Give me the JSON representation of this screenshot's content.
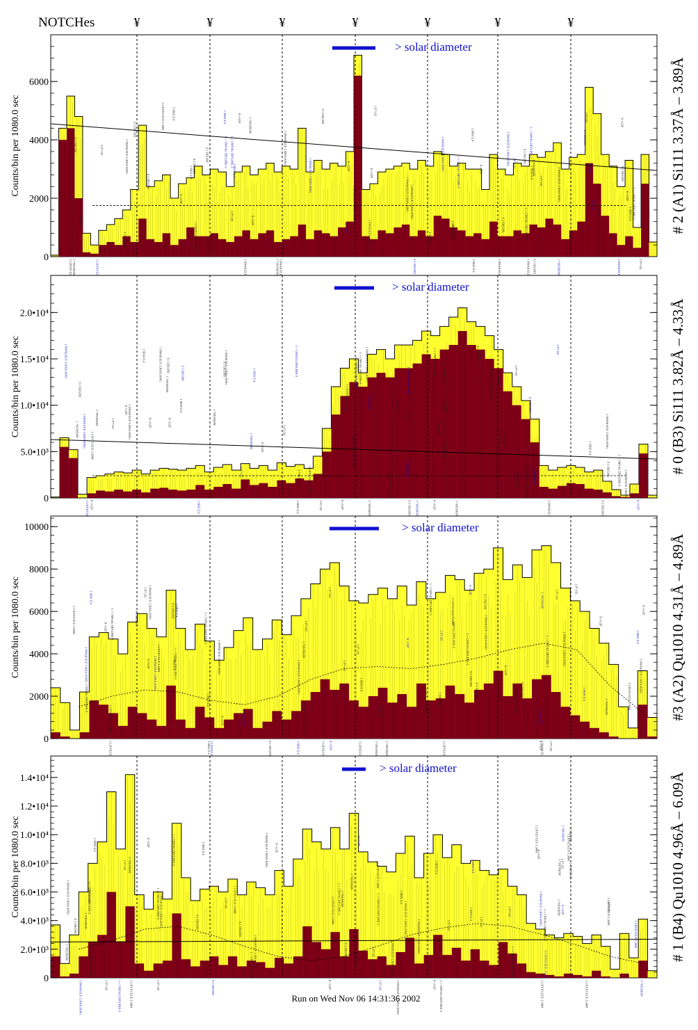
{
  "header": {
    "notches_label": "NOTCHes",
    "notch_symbol": "¥"
  },
  "footer": {
    "run_text": "Run on Wed Nov 06 14:31:36 2002"
  },
  "legend": {
    "text": "> solar diameter",
    "color": "#1010d0"
  },
  "colors": {
    "fill_total": "#ffff30",
    "fill_sub": "#800018",
    "line": "#000000",
    "annot_blue": "#1010c0",
    "annot_black": "#202020"
  },
  "chart_data": [
    {
      "type": "area",
      "title": "# 2 (A1) Si111  3.37Å – 3.89Å",
      "ylabel": "Counts/bin per   1080.0 sec",
      "ylim": [
        0,
        7600
      ],
      "yticks": [
        0,
        2000,
        4000,
        6000
      ],
      "ytick_labels": [
        "0",
        "2000",
        "4000",
        "6000"
      ],
      "trend_start": 4550,
      "trend_end": 2950,
      "dashed_avg_level": 1750,
      "series": [
        {
          "name": "total",
          "values": [
            50,
            4400,
            5500,
            4800,
            800,
            400,
            900,
            1100,
            1300,
            1600,
            2300,
            4500,
            2400,
            2600,
            2800,
            2000,
            2500,
            2700,
            3100,
            2800,
            3000,
            2900,
            2400,
            2900,
            3100,
            2800,
            3000,
            3200,
            2900,
            3100,
            3000,
            4400,
            2900,
            3300,
            3000,
            3200,
            3100,
            3600,
            6900,
            2300,
            2500,
            2900,
            3000,
            3100,
            3200,
            3000,
            3300,
            3100,
            3600,
            3500,
            3100,
            3200,
            3000,
            3000,
            2300,
            3500,
            3000,
            2800,
            3200,
            3100,
            3500,
            3400,
            3600,
            3900,
            3000,
            3400,
            3500,
            5800,
            4900,
            3500,
            3100,
            2400,
            3300,
            1000,
            3500,
            500
          ]
        },
        {
          "name": "subtracted",
          "values": [
            0,
            4000,
            4400,
            2000,
            150,
            100,
            400,
            500,
            400,
            700,
            500,
            1300,
            600,
            500,
            800,
            400,
            600,
            1000,
            700,
            700,
            800,
            600,
            500,
            700,
            900,
            600,
            800,
            900,
            500,
            600,
            700,
            1100,
            600,
            900,
            800,
            700,
            1000,
            1200,
            6200,
            700,
            600,
            900,
            800,
            1000,
            1100,
            700,
            900,
            700,
            1400,
            1300,
            1000,
            900,
            700,
            800,
            600,
            1200,
            700,
            700,
            900,
            800,
            1100,
            1000,
            1300,
            1100,
            600,
            900,
            1200,
            3200,
            2500,
            1400,
            800,
            400,
            700,
            300,
            2500,
            0
          ]
        }
      ]
    },
    {
      "type": "area",
      "title": "# 0 (B3) Si111  3.82Å – 4.33Å",
      "ylabel": "Counts/bin per   1080.0 sec",
      "ylim": [
        0,
        24000
      ],
      "yticks": [
        0,
        5000,
        10000,
        15000,
        20000
      ],
      "ytick_labels": [
        "0",
        "5.0•10³",
        "1.0•10⁴",
        "1.5•10⁴",
        "2.0•10⁴"
      ],
      "trend_start": 6300,
      "trend_end": 4200,
      "dashed_avg_level": 2400,
      "series": [
        {
          "name": "total",
          "values": [
            100,
            6500,
            5200,
            400,
            2200,
            2400,
            2600,
            2800,
            2700,
            3000,
            2600,
            3000,
            3200,
            3100,
            3000,
            3200,
            3500,
            2800,
            3300,
            3600,
            3000,
            3700,
            3200,
            3500,
            3000,
            3800,
            3400,
            3600,
            3200,
            4500,
            7500,
            12000,
            14000,
            15000,
            13500,
            15500,
            16000,
            15000,
            16500,
            16500,
            17000,
            18000,
            17500,
            18500,
            19500,
            20500,
            19000,
            18500,
            17500,
            16000,
            13500,
            12000,
            10500,
            8500,
            3500,
            3000,
            3300,
            3500,
            3300,
            2800,
            3000,
            1800,
            900,
            300,
            1500,
            5800,
            300
          ]
        },
        {
          "name": "subtracted",
          "values": [
            0,
            5500,
            4300,
            0,
            500,
            800,
            700,
            900,
            700,
            900,
            600,
            1000,
            1100,
            900,
            800,
            900,
            1400,
            900,
            1200,
            1500,
            1000,
            2000,
            1400,
            1600,
            1200,
            1900,
            1600,
            2100,
            1900,
            2600,
            5000,
            9000,
            11000,
            12500,
            12000,
            13000,
            13500,
            13000,
            14000,
            14000,
            14500,
            15500,
            15000,
            16000,
            16500,
            18000,
            16500,
            16000,
            15000,
            14000,
            11500,
            10000,
            8500,
            6000,
            1200,
            1000,
            1300,
            1600,
            1500,
            1000,
            900,
            600,
            200,
            100,
            500,
            4800,
            0
          ]
        }
      ]
    },
    {
      "type": "area",
      "title": "#3 (A2) Qu1010  4.31Å – 4.89Å",
      "ylabel": "Counts/bin per   1080.0 sec",
      "ylim": [
        0,
        10500
      ],
      "yticks": [
        0,
        2000,
        4000,
        6000,
        8000,
        10000
      ],
      "ytick_labels": [
        "0",
        "2000",
        "4000",
        "6000",
        "8000",
        "10000"
      ],
      "dashed_curve": [
        1500,
        2000,
        2300,
        2200,
        1800,
        1600,
        2000,
        2800,
        3300,
        3400,
        3300,
        3500,
        3800,
        4200,
        4500,
        4200,
        2500,
        1200
      ],
      "series": [
        {
          "name": "total",
          "values": [
            2400,
            1700,
            400,
            2200,
            4800,
            5000,
            4700,
            4000,
            5500,
            5900,
            5200,
            4800,
            7000,
            5200,
            4200,
            5400,
            4600,
            3700,
            4300,
            5100,
            5700,
            4200,
            4700,
            5600,
            4900,
            5800,
            6600,
            7300,
            8000,
            8300,
            7200,
            6500,
            6400,
            6800,
            7100,
            6600,
            7200,
            6300,
            7400,
            6600,
            6900,
            7700,
            7500,
            7000,
            7800,
            8000,
            9000,
            7500,
            8200,
            7600,
            8900,
            9100,
            8300,
            7100,
            6500,
            6000,
            5200,
            4500,
            3500,
            1500,
            500,
            3200,
            1000
          ]
        },
        {
          "name": "subtracted",
          "values": [
            300,
            100,
            0,
            300,
            1800,
            1600,
            1200,
            600,
            1500,
            1200,
            900,
            600,
            2500,
            900,
            500,
            1500,
            1000,
            500,
            900,
            1200,
            1400,
            500,
            800,
            1300,
            900,
            1300,
            1800,
            2200,
            2800,
            2300,
            2600,
            1800,
            1500,
            2000,
            2400,
            1700,
            2100,
            1500,
            2600,
            1800,
            1900,
            2500,
            2100,
            1700,
            2300,
            2600,
            3200,
            2000,
            2600,
            1900,
            2800,
            3000,
            2200,
            1500,
            1100,
            800,
            500,
            300,
            100,
            0,
            0,
            1600,
            100
          ]
        }
      ]
    },
    {
      "type": "area",
      "title": "# 1 (B4) Qu1010 4.96Å – 6.09Å",
      "ylabel": "Counts/bin per   1080.0 sec",
      "ylim": [
        0,
        15500
      ],
      "yticks": [
        0,
        2000,
        4000,
        6000,
        8000,
        10000,
        12000,
        14000
      ],
      "ytick_labels": [
        "0",
        "2.0•10³",
        "4.0•10³",
        "6.0•10³",
        "8.0•10³",
        "1.0•10⁴",
        "1.2•10⁴",
        "1.4•10⁴"
      ],
      "trend_start": 2500,
      "trend_end": 2700,
      "dashed_curve": [
        2000,
        2600,
        3400,
        3600,
        3000,
        2200,
        1500,
        1200,
        1500,
        2200,
        3000,
        3500,
        3800,
        3600,
        3000,
        2300,
        1500,
        1000
      ],
      "series": [
        {
          "name": "total",
          "values": [
            3700,
            1000,
            3000,
            6000,
            8000,
            9500,
            13000,
            9000,
            14200,
            5800,
            4800,
            6000,
            5500,
            10800,
            7000,
            5400,
            6200,
            6400,
            6000,
            6900,
            5800,
            6700,
            6300,
            5800,
            7500,
            6400,
            8300,
            10400,
            9500,
            9000,
            10500,
            9000,
            11500,
            8800,
            8100,
            7800,
            7400,
            8700,
            9900,
            7000,
            8700,
            10000,
            8400,
            9300,
            8000,
            8200,
            7500,
            7200,
            7600,
            6400,
            5800,
            3800,
            3400,
            3000,
            2800,
            3100,
            2900,
            2400,
            3000,
            2200,
            600,
            3100,
            1400,
            4100,
            500
          ]
        },
        {
          "name": "subtracted",
          "values": [
            1500,
            100,
            300,
            1500,
            2500,
            3000,
            6000,
            2500,
            5000,
            1000,
            500,
            1000,
            1200,
            4500,
            1300,
            800,
            1200,
            1500,
            900,
            1500,
            800,
            1200,
            1100,
            700,
            1400,
            1000,
            1500,
            3600,
            2500,
            2000,
            3200,
            1500,
            3400,
            1900,
            1300,
            1500,
            900,
            1800,
            2800,
            1000,
            1600,
            3000,
            1600,
            2100,
            1200,
            2000,
            1200,
            900,
            2500,
            1700,
            1000,
            400,
            300,
            200,
            100,
            300,
            200,
            100,
            500,
            100,
            0,
            300,
            0,
            1200,
            0
          ]
        }
      ]
    }
  ]
}
